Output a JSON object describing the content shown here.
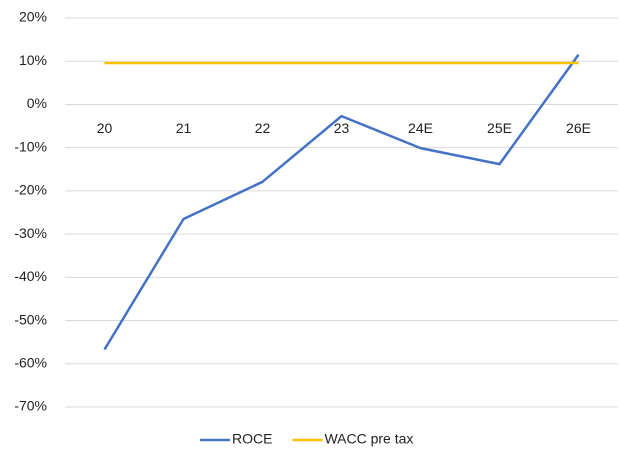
{
  "chart_data": {
    "type": "line",
    "categories": [
      "20",
      "21",
      "22",
      "23",
      "24E",
      "25E",
      "26E"
    ],
    "series": [
      {
        "name": "ROCE",
        "color": "#4472c4",
        "values": [
          -56.7,
          -26.5,
          -17.9,
          -2.7,
          -10.1,
          -13.8,
          11.5
        ]
      },
      {
        "name": "WACC pre tax",
        "color": "#ffc000",
        "values": [
          9.6,
          9.6,
          9.6,
          9.6,
          9.6,
          9.6,
          9.6
        ]
      }
    ],
    "ylim": [
      -70,
      20
    ],
    "yticks": [
      {
        "value": -70,
        "label": "-70%"
      },
      {
        "value": -60,
        "label": "-60%"
      },
      {
        "value": -50,
        "label": "-50%"
      },
      {
        "value": -40,
        "label": "-40%"
      },
      {
        "value": -30,
        "label": "-30%"
      },
      {
        "value": -20,
        "label": "-20%"
      },
      {
        "value": -10,
        "label": "-10%"
      },
      {
        "value": 0,
        "label": "0%"
      },
      {
        "value": 10,
        "label": "10%"
      },
      {
        "value": 20,
        "label": "20%"
      }
    ],
    "grid": true,
    "legend": "bottom"
  }
}
